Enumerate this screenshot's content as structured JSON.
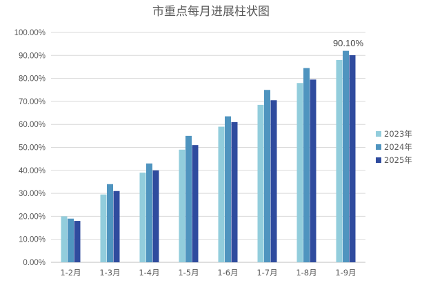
{
  "chart_data": {
    "type": "bar",
    "title": "市重点每月进展柱状图",
    "categories": [
      "1-2月",
      "1-3月",
      "1-4月",
      "1-5月",
      "1-6月",
      "1-7月",
      "1-8月",
      "1-9月"
    ],
    "series": [
      {
        "name": "2023年",
        "color": "#92cddc",
        "values": [
          20.0,
          29.5,
          39.0,
          49.0,
          59.0,
          68.5,
          78.0,
          88.0
        ]
      },
      {
        "name": "2024年",
        "color": "#4f94bf",
        "values": [
          19.0,
          34.0,
          43.0,
          55.0,
          63.5,
          75.0,
          84.5,
          92.0
        ]
      },
      {
        "name": "2025年",
        "color": "#2f4b9e",
        "values": [
          18.0,
          31.0,
          40.0,
          51.0,
          61.0,
          70.5,
          79.5,
          90.1
        ]
      }
    ],
    "ylim": [
      0,
      100
    ],
    "y_ticks": [
      "0.00%",
      "10.00%",
      "20.00%",
      "30.00%",
      "40.00%",
      "50.00%",
      "60.00%",
      "70.00%",
      "80.00%",
      "90.00%",
      "100.00%"
    ],
    "y_tick_values": [
      0,
      10,
      20,
      30,
      40,
      50,
      60,
      70,
      80,
      90,
      100
    ],
    "annotation": {
      "text": "90.10%",
      "series_index": 2,
      "category_index": 7
    },
    "grid": true,
    "legend_position": "right"
  }
}
